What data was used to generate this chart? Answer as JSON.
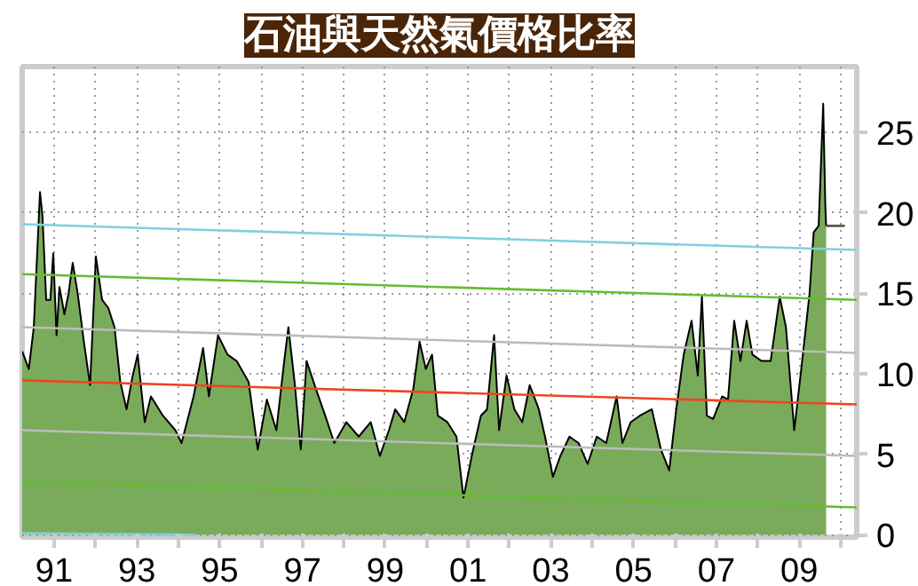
{
  "chart_data": {
    "type": "area",
    "title": "石油與天然氣價格比率",
    "xlim": [
      1990.23,
      2010.39
    ],
    "ylim": [
      -0.15,
      29.1
    ],
    "xticks": [
      {
        "value": 1991,
        "label": "91"
      },
      {
        "value": 1992,
        "label": null
      },
      {
        "value": 1993,
        "label": "93"
      },
      {
        "value": 1994,
        "label": null
      },
      {
        "value": 1995,
        "label": "95"
      },
      {
        "value": 1996,
        "label": null
      },
      {
        "value": 1997,
        "label": "97"
      },
      {
        "value": 1998,
        "label": null
      },
      {
        "value": 1999,
        "label": "99"
      },
      {
        "value": 2000,
        "label": null
      },
      {
        "value": 2001,
        "label": "01"
      },
      {
        "value": 2002,
        "label": null
      },
      {
        "value": 2003,
        "label": "03"
      },
      {
        "value": 2004,
        "label": null
      },
      {
        "value": 2005,
        "label": "05"
      },
      {
        "value": 2006,
        "label": null
      },
      {
        "value": 2007,
        "label": "07"
      },
      {
        "value": 2008,
        "label": null
      },
      {
        "value": 2009,
        "label": "09"
      },
      {
        "value": 2010,
        "label": null
      }
    ],
    "yticks": [
      0,
      5,
      10,
      15,
      20,
      25
    ],
    "grid": true,
    "series": [
      {
        "color": "#7aab5a",
        "x": [
          1990.23,
          1990.39,
          1990.51,
          1990.66,
          1990.72,
          1990.81,
          1990.91,
          1990.98,
          1991.06,
          1991.13,
          1991.25,
          1991.35,
          1991.45,
          1991.57,
          1991.72,
          1991.87,
          1992.01,
          1992.16,
          1992.31,
          1992.46,
          1992.6,
          1992.75,
          1992.9,
          1993.02,
          1993.19,
          1993.34,
          1993.63,
          1993.93,
          1994.08,
          1994.37,
          1994.6,
          1994.74,
          1994.96,
          1995.19,
          1995.41,
          1995.7,
          1995.92,
          1996.14,
          1996.37,
          1996.56,
          1996.66,
          1996.81,
          1996.96,
          1997.1,
          1997.32,
          1997.55,
          1997.77,
          1998.06,
          1998.36,
          1998.65,
          1998.87,
          1999.09,
          1999.24,
          1999.46,
          1999.68,
          1999.83,
          1999.98,
          2000.13,
          2000.27,
          2000.5,
          2000.72,
          2000.89,
          2001.09,
          2001.31,
          2001.46,
          2001.63,
          2001.75,
          2001.93,
          2002.12,
          2002.31,
          2002.49,
          2002.71,
          2002.86,
          2003.05,
          2003.23,
          2003.45,
          2003.67,
          2003.89,
          2004.11,
          2004.34,
          2004.59,
          2004.73,
          2004.93,
          2005.15,
          2005.44,
          2005.66,
          2005.86,
          2006.03,
          2006.21,
          2006.4,
          2006.55,
          2006.65,
          2006.77,
          2006.92,
          2007.14,
          2007.28,
          2007.43,
          2007.58,
          2007.73,
          2007.87,
          2008.09,
          2008.31,
          2008.53,
          2008.68,
          2008.88,
          2009.05,
          2009.25,
          2009.35,
          2009.47,
          2009.58,
          2009.63,
          2009.65
        ],
        "values": [
          11.4,
          10.3,
          12.9,
          21.3,
          19.8,
          14.6,
          14.6,
          17.5,
          12.4,
          15.4,
          13.7,
          15.0,
          16.9,
          15.0,
          12.0,
          9.3,
          17.3,
          14.6,
          14.1,
          12.9,
          9.5,
          7.8,
          9.9,
          11.2,
          7.0,
          8.6,
          7.4,
          6.5,
          5.7,
          8.6,
          11.6,
          8.6,
          12.4,
          11.2,
          10.8,
          9.5,
          5.3,
          8.4,
          6.5,
          10.8,
          12.9,
          9.5,
          5.3,
          10.8,
          9.1,
          7.4,
          5.7,
          7.0,
          6.1,
          7.0,
          4.9,
          6.5,
          7.8,
          7.0,
          9.1,
          12.0,
          10.3,
          11.2,
          7.4,
          7.0,
          6.1,
          2.3,
          4.9,
          7.4,
          7.8,
          12.4,
          6.5,
          9.9,
          7.8,
          7.0,
          9.3,
          7.8,
          6.1,
          3.6,
          4.9,
          6.1,
          5.7,
          4.4,
          6.1,
          5.7,
          8.6,
          5.7,
          7.0,
          7.4,
          7.8,
          5.3,
          4.0,
          7.8,
          11.2,
          13.3,
          9.9,
          14.8,
          7.4,
          7.2,
          8.6,
          8.4,
          13.3,
          10.8,
          13.3,
          11.2,
          10.8,
          10.8,
          14.8,
          12.9,
          6.5,
          10.3,
          15.0,
          18.8,
          19.2,
          26.8,
          20.5,
          19.2
        ]
      },
      {
        "type": "line",
        "color": "#7fd0e0",
        "x": [
          1990.23,
          2010.39
        ],
        "values": [
          19.3,
          17.7
        ]
      },
      {
        "type": "line",
        "color": "#66bb33",
        "x": [
          1990.23,
          2010.39
        ],
        "values": [
          16.2,
          14.6
        ]
      },
      {
        "type": "line",
        "color": "#bbbbbb",
        "x": [
          1990.23,
          2010.39
        ],
        "values": [
          12.9,
          11.3
        ]
      },
      {
        "type": "line",
        "color": "#ee4422",
        "x": [
          1990.23,
          2010.39
        ],
        "values": [
          9.6,
          8.1
        ]
      },
      {
        "type": "line",
        "color": "#bbbbbb",
        "x": [
          1990.23,
          2010.39
        ],
        "values": [
          6.5,
          4.9
        ]
      },
      {
        "type": "line",
        "color": "#66bb33",
        "x": [
          1990.23,
          2010.39
        ],
        "values": [
          3.3,
          1.7
        ]
      },
      {
        "type": "line",
        "color": "#7fd0e0",
        "x": [
          1990.23,
          1994.4
        ],
        "values": [
          0.1,
          0.0
        ]
      },
      {
        "type": "line",
        "color": "#5a4a3a",
        "x": [
          2009.65,
          2010.1
        ],
        "values": [
          19.2,
          19.2
        ]
      }
    ]
  }
}
